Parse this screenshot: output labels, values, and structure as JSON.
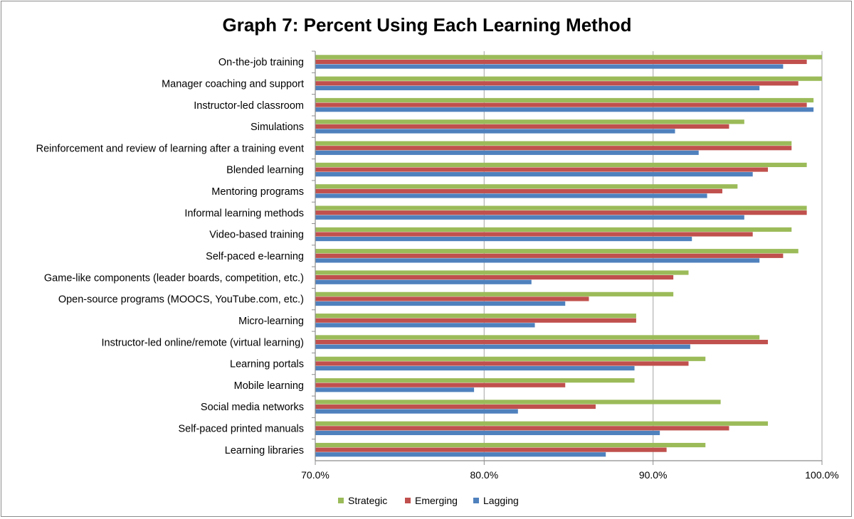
{
  "chart_data": {
    "type": "bar",
    "orientation": "horizontal",
    "title": "Graph 7: Percent Using Each Learning Method",
    "xlabel": "",
    "ylabel": "",
    "xlim": [
      70,
      100
    ],
    "x_ticks": [
      70,
      80,
      90,
      100
    ],
    "x_tick_labels": [
      "70.0%",
      "80.0%",
      "90.0%",
      "100.0%"
    ],
    "grid": "vertical major gridlines",
    "legend_position": "bottom",
    "categories": [
      "On-the-job training",
      "Manager coaching and support",
      "Instructor-led classroom",
      "Simulations",
      "Reinforcement and review of learning after a training event",
      "Blended learning",
      "Mentoring programs",
      "Informal learning methods",
      "Video-based training",
      "Self-paced e-learning",
      "Game-like components (leader boards, competition, etc.)",
      "Open-source programs (MOOCS, YouTube.com, etc.)",
      "Micro-learning",
      "Instructor-led online/remote (virtual learning)",
      "Learning portals",
      "Mobile learning",
      "Social media networks",
      "Self-paced printed manuals",
      "Learning libraries"
    ],
    "series": [
      {
        "name": "Strategic",
        "color": "#9bbb59",
        "values": [
          100.0,
          100.0,
          99.5,
          95.4,
          98.2,
          99.1,
          95.0,
          99.1,
          98.2,
          98.6,
          92.1,
          91.2,
          89.0,
          96.3,
          93.1,
          88.9,
          94.0,
          96.8,
          93.1
        ]
      },
      {
        "name": "Emerging",
        "color": "#c0504d",
        "values": [
          99.1,
          98.6,
          99.1,
          94.5,
          98.2,
          96.8,
          94.1,
          99.1,
          95.9,
          97.7,
          91.2,
          86.2,
          89.0,
          96.8,
          92.1,
          84.8,
          86.6,
          94.5,
          90.8
        ]
      },
      {
        "name": "Lagging",
        "color": "#4f81bd",
        "values": [
          97.7,
          96.3,
          99.5,
          91.3,
          92.7,
          95.9,
          93.2,
          95.4,
          92.3,
          96.3,
          82.8,
          84.8,
          83.0,
          92.2,
          88.9,
          79.4,
          82.0,
          90.4,
          87.2
        ]
      }
    ]
  }
}
